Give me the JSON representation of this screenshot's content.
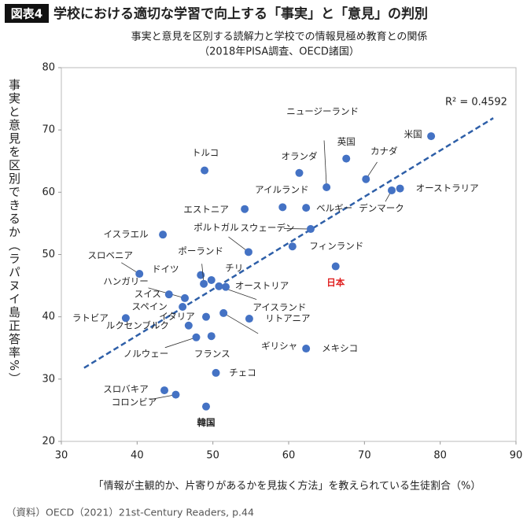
{
  "badge": "図表4",
  "chart_data": {
    "type": "scatter",
    "title": "学校における適切な学習で向上する「事実」と「意見」の判別",
    "subtitle": "事実と意見を区別する読解力と学校での情報見極め教育との関係",
    "subtitle2": "（2018年PISA調査、OECD諸国）",
    "x_label": "「情報が主観的か、片寄りがあるかを見抜く方法」を教えられている生徒割合（%）",
    "y_label": "事実と意見を区別できるか（ラパヌイ島正答率%）",
    "annotation": "R² = 0.4592",
    "source": "（資料）OECD（2021）21st-Century Readers, p.44",
    "x": [
      78.8,
      67.6,
      70.2,
      74.7,
      73.6,
      48.9,
      61.4,
      65.0,
      59.2,
      62.3,
      54.2,
      62.9,
      60.5,
      54.7,
      43.4,
      40.3,
      48.4,
      48.8,
      49.8,
      50.8,
      51.7,
      46.3,
      44.2,
      46.0,
      38.5,
      46.8,
      49.1,
      51.4,
      54.8,
      47.8,
      49.8,
      62.3,
      50.4,
      43.6,
      45.1,
      49.1,
      66.2
    ],
    "series": [
      {
        "color": "#4472c4",
        "values": [
          69.0,
          65.4,
          62.1,
          60.6,
          60.3,
          63.5,
          63.1,
          60.8,
          57.6,
          57.5,
          57.3,
          54.1,
          51.3,
          50.4,
          53.2,
          46.9,
          46.7,
          45.3,
          45.9,
          44.9,
          44.8,
          43.0,
          43.6,
          41.6,
          39.8,
          38.6,
          40.0,
          40.6,
          39.7,
          36.7,
          36.9,
          34.9,
          31.0,
          28.2,
          27.5,
          25.6,
          48.1
        ],
        "point_labels": [
          "米国",
          "英国",
          "カナダ",
          "オーストラリア",
          "デンマーク",
          "トルコ",
          "オランダ",
          "ニュージーランド",
          "アイルランド",
          "ベルギー",
          "エストニア",
          "スウェーデン",
          "フィンランド",
          "ポルトガル",
          "イスラエル",
          "スロベニア",
          "ドイツ",
          "ポーランド",
          "チリ",
          "アイスランド",
          "オーストリア",
          "ハンガリー",
          "スイス",
          "スペイン",
          "ラトビア",
          "ルクセンブルク",
          "イタリア",
          "ギリシャ",
          "リトアニア",
          "ノルウェー",
          "フランス",
          "メキシコ",
          "チェコ",
          "スロバキア",
          "コロンビア",
          "韓国",
          "日本"
        ]
      }
    ],
    "trendline": {
      "color": "#2e5fa8",
      "x": [
        33,
        87
      ],
      "y": [
        31.8,
        71.9
      ]
    },
    "xlim": [
      30,
      90
    ],
    "xticks": [
      30,
      40,
      50,
      60,
      70,
      80,
      90
    ],
    "ylim": [
      20,
      80
    ],
    "yticks": [
      20,
      30,
      40,
      50,
      60,
      70,
      80
    ]
  }
}
